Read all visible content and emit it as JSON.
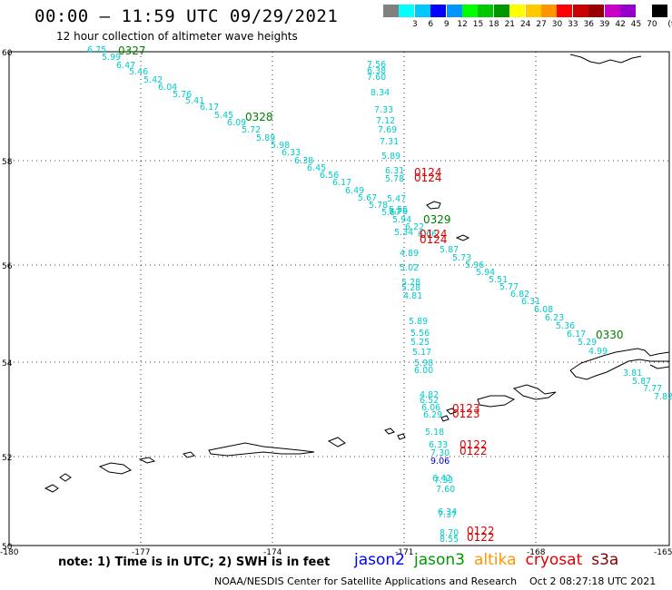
{
  "header": {
    "title": "00:00 – 11:59 UTC 09/29/2021",
    "subtitle": "12 hour collection of altimeter wave heights"
  },
  "scale": {
    "unit": "(ft)",
    "bins": [
      {
        "label": "",
        "color": "#808080"
      },
      {
        "label": "3",
        "color": "#00ffff"
      },
      {
        "label": "6",
        "color": "#00c8ff"
      },
      {
        "label": "9",
        "color": "#0000ff"
      },
      {
        "label": "12",
        "color": "#0096ff"
      },
      {
        "label": "15",
        "color": "#00ff00"
      },
      {
        "label": "18",
        "color": "#00c800"
      },
      {
        "label": "21",
        "color": "#009600"
      },
      {
        "label": "24",
        "color": "#ffff00"
      },
      {
        "label": "27",
        "color": "#ffc800"
      },
      {
        "label": "30",
        "color": "#ff9600"
      },
      {
        "label": "33",
        "color": "#ff0000"
      },
      {
        "label": "36",
        "color": "#c80000"
      },
      {
        "label": "39",
        "color": "#960000"
      },
      {
        "label": "42",
        "color": "#c800c8"
      },
      {
        "label": "45",
        "color": "#9600c8"
      },
      {
        "label": "70",
        "color": "#ffffff"
      },
      {
        "label": "",
        "color": "#000000"
      }
    ]
  },
  "axes": {
    "lat_labels": [
      "60",
      "58",
      "56",
      "54",
      "52",
      "50"
    ],
    "lon_labels": [
      "-180",
      "-177",
      "-174",
      "-171",
      "-168",
      "-165"
    ]
  },
  "passes": [
    {
      "label": "0327",
      "color": "#008000"
    },
    {
      "label": "0328",
      "color": "#008000"
    },
    {
      "label": "0329",
      "color": "#008000"
    },
    {
      "label": "0330",
      "color": "#008000"
    },
    {
      "label": "0124",
      "color": "#e00000"
    },
    {
      "label": "0124",
      "color": "#e00000"
    },
    {
      "label": "0124",
      "color": "#e00000"
    },
    {
      "label": "0124",
      "color": "#e00000"
    },
    {
      "label": "0123",
      "color": "#e00000"
    },
    {
      "label": "0123",
      "color": "#e00000"
    },
    {
      "label": "0122",
      "color": "#e00000"
    },
    {
      "label": "0122",
      "color": "#e00000"
    },
    {
      "label": "0122",
      "color": "#e00000"
    },
    {
      "label": "0122",
      "color": "#e00000"
    }
  ],
  "track_a": [
    "6.75",
    "5.99",
    "6.47",
    "5.46",
    "5.42",
    "6.04",
    "5.76",
    "5.41",
    "6.17",
    "5.45",
    "6.09",
    "5.72",
    "5.89",
    "5.98",
    "6.33",
    "6.38",
    "6.45",
    "6.56",
    "6.17",
    "6.49",
    "5.67",
    "5.78",
    "5.67",
    "5.94",
    "6.22",
    "6.66",
    "5.87",
    "5.73",
    "5.96",
    "5.94",
    "5.51",
    "5.77",
    "6.82",
    "6.31",
    "6.08",
    "6.23",
    "5.36",
    "6.17",
    "5.29",
    "4.99",
    "3.81",
    "5.87",
    "7.77",
    "7.82"
  ],
  "track_b": [
    "7.56",
    "6.38",
    "7.60",
    "8.34",
    "7.33",
    "7.12",
    "7.69",
    "7.31",
    "5.89",
    "6.31",
    "5.78",
    "5.47",
    "5.78",
    "5.56",
    "5.34",
    "4.89",
    "5.02",
    "5.28",
    "5.28",
    "4.81",
    "5.89",
    "5.56",
    "5.25",
    "5.17",
    "5.98",
    "6.00",
    "4.82",
    "6.52",
    "6.06",
    "6.29",
    "5.18",
    "6.33",
    "7.30",
    "9.06",
    "6.42",
    "7.33",
    "7.60",
    "6.34",
    "7.37",
    "8.70",
    "8.55"
  ],
  "footer": {
    "note": "note:  1) Time is in UTC; 2) SWH is in feet",
    "satellites": [
      {
        "name": "jason2",
        "color": "#0000ff"
      },
      {
        "name": "jason3",
        "color": "#009600"
      },
      {
        "name": "altika",
        "color": "#ff9600"
      },
      {
        "name": "cryosat",
        "color": "#e00000"
      },
      {
        "name": "s3a",
        "color": "#800000"
      }
    ],
    "credit": "NOAA/NESDIS Center for Satellite Applications and Research",
    "generated": "Oct  2 08:27:18 UTC 2021"
  }
}
